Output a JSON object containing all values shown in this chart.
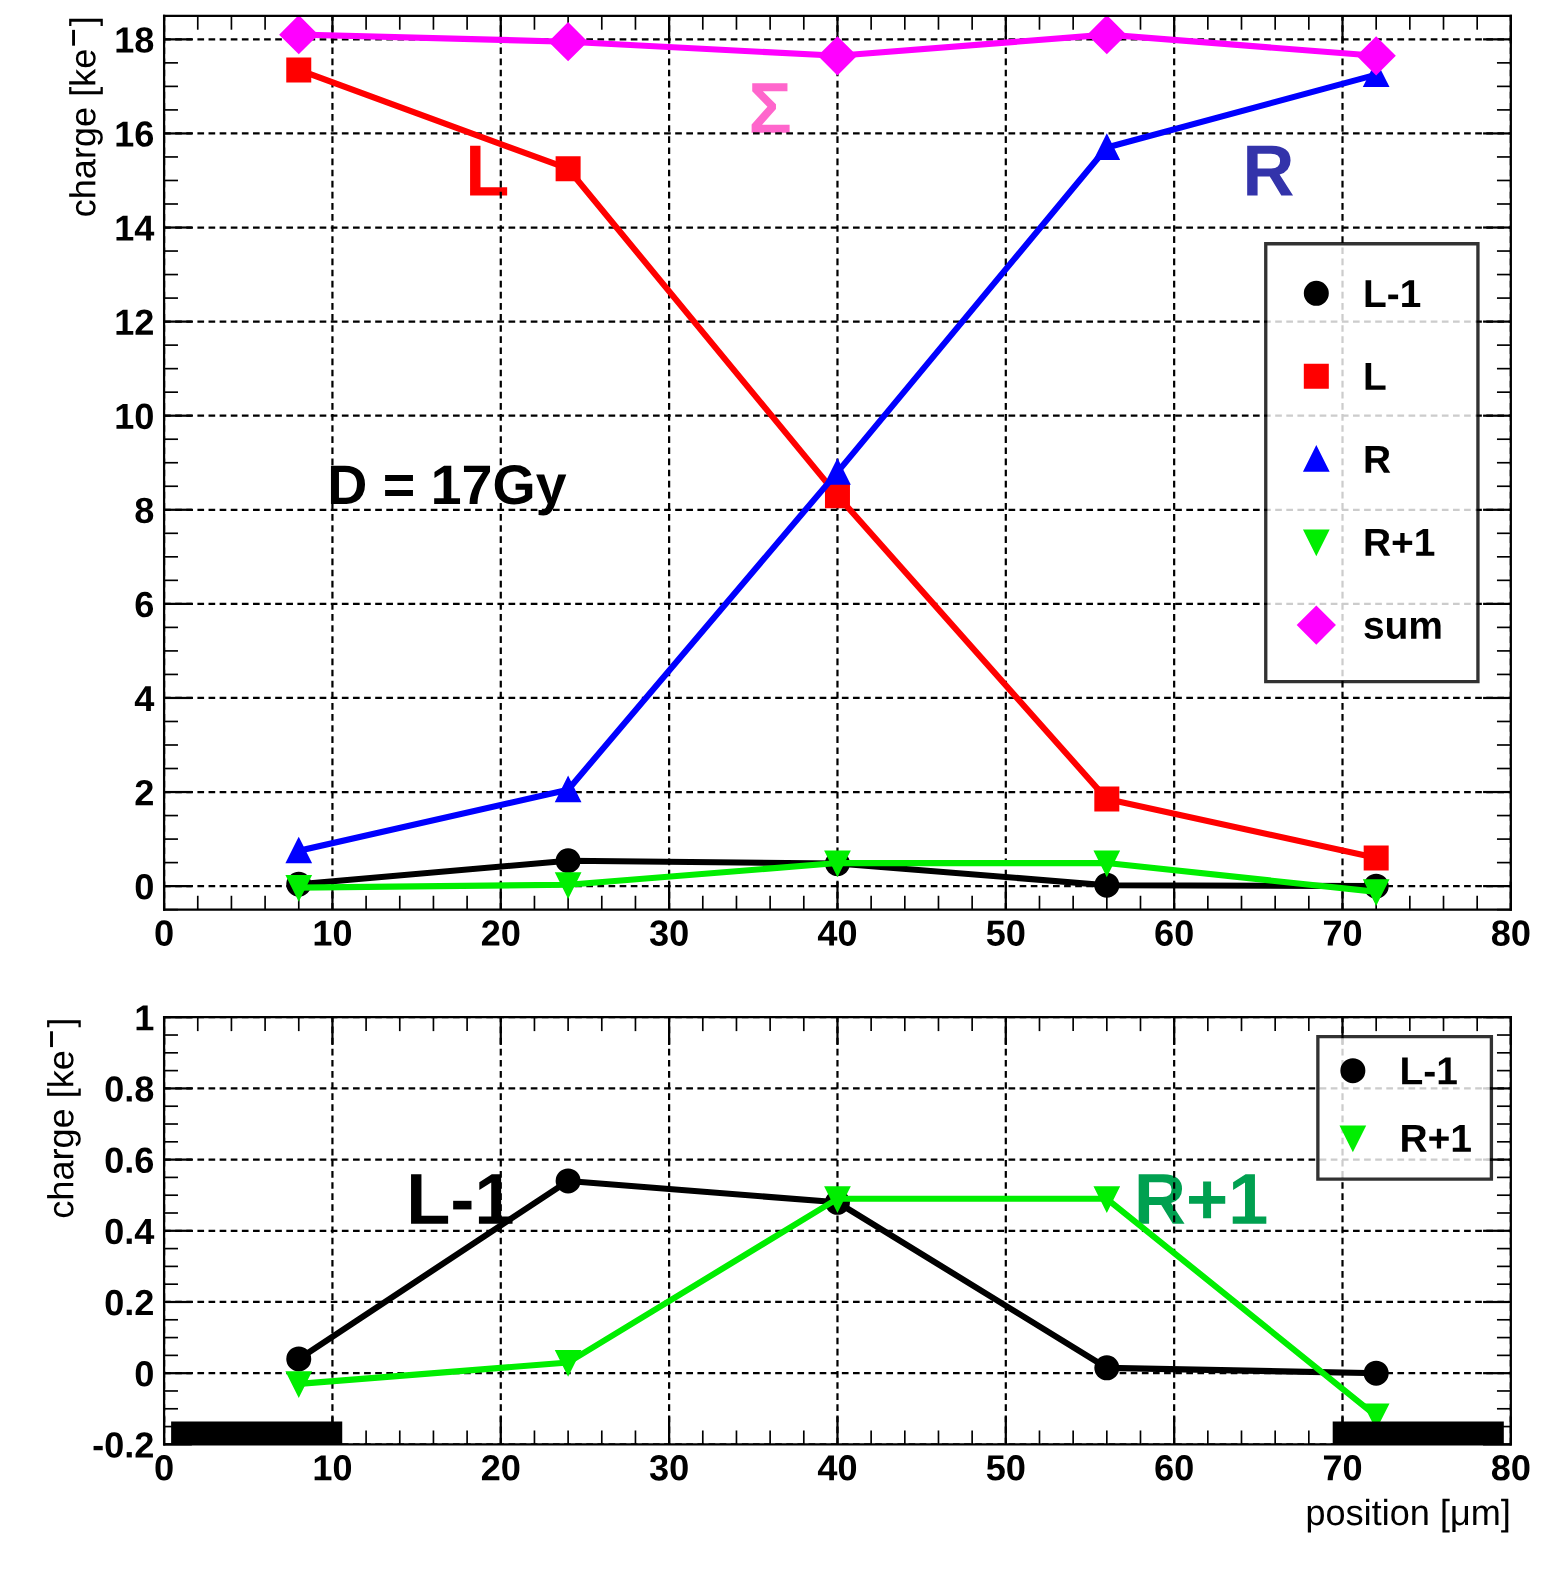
{
  "chart_data": [
    {
      "type": "line",
      "ylabel": "charge [ke$^{−}$]",
      "x": [
        8,
        24,
        40,
        56,
        72
      ],
      "xlim": [
        0,
        80
      ],
      "xticks": [
        0,
        10,
        20,
        30,
        40,
        50,
        60,
        70,
        80
      ],
      "ylim": [
        -0.5,
        18.5
      ],
      "yticks": [
        0,
        2,
        4,
        6,
        8,
        10,
        12,
        14,
        16,
        18
      ],
      "grid": true,
      "legend": "right",
      "line_style": "solid",
      "series": [
        {
          "name": "L-1",
          "color": "#000000",
          "marker": "circle",
          "values": [
            0.04,
            0.54,
            0.48,
            0.02,
            0
          ]
        },
        {
          "name": "L",
          "color": "#ff0000",
          "marker": "square",
          "values": [
            17.35,
            15.25,
            8.3,
            1.85,
            0.6
          ]
        },
        {
          "name": "R",
          "color": "#0000ff",
          "marker": "triangle",
          "values": [
            0.75,
            2.05,
            8.8,
            15.7,
            17.25
          ]
        },
        {
          "name": "R+1",
          "color": "#00ee00",
          "marker": "triangle_down",
          "values": [
            -0.03,
            0.03,
            0.49,
            0.49,
            -0.12
          ]
        },
        {
          "name": "sum",
          "color": "#ff00ff",
          "marker": "diamond",
          "values": [
            18.1,
            17.95,
            17.65,
            18.1,
            17.65
          ]
        }
      ],
      "annotations": [
        "L",
        "R",
        "Σ",
        "D = 17Gy"
      ]
    },
    {
      "type": "line",
      "xlabel": "position [μm]",
      "ylabel": "charge [ke$^{−}$]",
      "x": [
        8,
        24,
        40,
        56,
        72
      ],
      "xlim": [
        0,
        80
      ],
      "xticks": [
        0,
        10,
        20,
        30,
        40,
        50,
        60,
        70,
        80
      ],
      "ylim": [
        -0.2,
        1
      ],
      "yticks": [
        {
          "value": -0.2,
          "label": "-0.2"
        },
        0,
        0.2,
        0.4,
        0.6,
        0.8,
        1
      ],
      "grid": true,
      "legend": "top right",
      "line_style": "solid",
      "series": [
        {
          "name": "L-1",
          "color": "#000000",
          "marker": "circle",
          "values": [
            0.04,
            0.54,
            0.48,
            0.015,
            0
          ]
        },
        {
          "name": "R+1",
          "color": "#00ee00",
          "marker": "triangle_down",
          "values": [
            -0.03,
            0.03,
            0.49,
            0.49,
            -0.12
          ]
        }
      ],
      "annotations": [
        "L-1",
        "R+1"
      ]
    }
  ]
}
